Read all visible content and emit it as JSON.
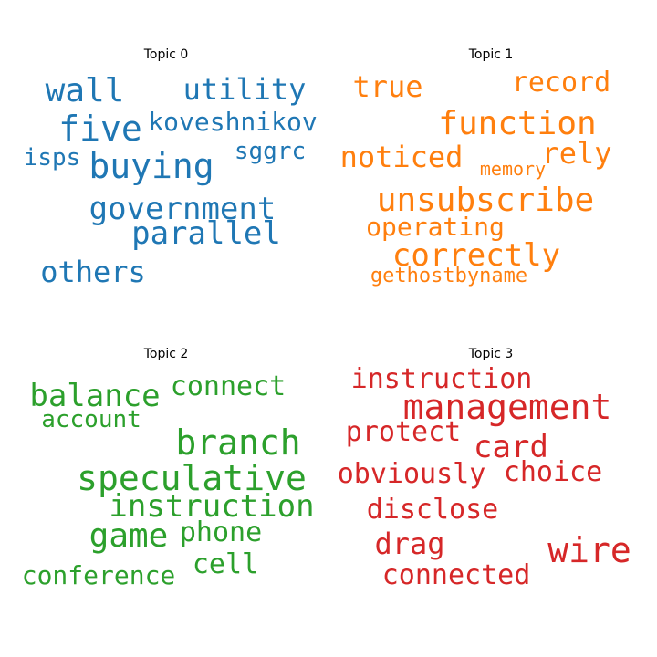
{
  "chart_data": [
    {
      "type": "wordcloud",
      "title": "Topic 0",
      "color": "#1f77b4",
      "words": [
        {
          "text": "wall",
          "weight": 36
        },
        {
          "text": "utility",
          "weight": 32
        },
        {
          "text": "five",
          "weight": 38
        },
        {
          "text": "koveshnikov",
          "weight": 28
        },
        {
          "text": "buying",
          "weight": 38
        },
        {
          "text": "isps",
          "weight": 26
        },
        {
          "text": "sggrc",
          "weight": 26
        },
        {
          "text": "government",
          "weight": 34
        },
        {
          "text": "parallel",
          "weight": 34
        },
        {
          "text": "others",
          "weight": 32
        }
      ]
    },
    {
      "type": "wordcloud",
      "title": "Topic 1",
      "color": "#ff7f0e",
      "words": [
        {
          "text": "true",
          "weight": 32
        },
        {
          "text": "record",
          "weight": 30
        },
        {
          "text": "function",
          "weight": 36
        },
        {
          "text": "noticed",
          "weight": 32
        },
        {
          "text": "rely",
          "weight": 32
        },
        {
          "text": "memory",
          "weight": 20
        },
        {
          "text": "unsubscribe",
          "weight": 36
        },
        {
          "text": "operating",
          "weight": 28
        },
        {
          "text": "correctly",
          "weight": 34
        },
        {
          "text": "gethostbyname",
          "weight": 22
        }
      ]
    },
    {
      "type": "wordcloud",
      "title": "Topic 2",
      "color": "#2ca02c",
      "words": [
        {
          "text": "balance",
          "weight": 34
        },
        {
          "text": "connect",
          "weight": 30
        },
        {
          "text": "account",
          "weight": 26
        },
        {
          "text": "branch",
          "weight": 38
        },
        {
          "text": "speculative",
          "weight": 38
        },
        {
          "text": "instruction",
          "weight": 34
        },
        {
          "text": "game",
          "weight": 36
        },
        {
          "text": "phone",
          "weight": 30
        },
        {
          "text": "cell",
          "weight": 30
        },
        {
          "text": "conference",
          "weight": 28
        }
      ]
    },
    {
      "type": "wordcloud",
      "title": "Topic 3",
      "color": "#d62728",
      "words": [
        {
          "text": "instruction",
          "weight": 30
        },
        {
          "text": "management",
          "weight": 38
        },
        {
          "text": "protect",
          "weight": 30
        },
        {
          "text": "card",
          "weight": 34
        },
        {
          "text": "obviously",
          "weight": 30
        },
        {
          "text": "choice",
          "weight": 30
        },
        {
          "text": "disclose",
          "weight": 30
        },
        {
          "text": "drag",
          "weight": 32
        },
        {
          "text": "wire",
          "weight": 38
        },
        {
          "text": "connected",
          "weight": 30
        }
      ]
    }
  ]
}
